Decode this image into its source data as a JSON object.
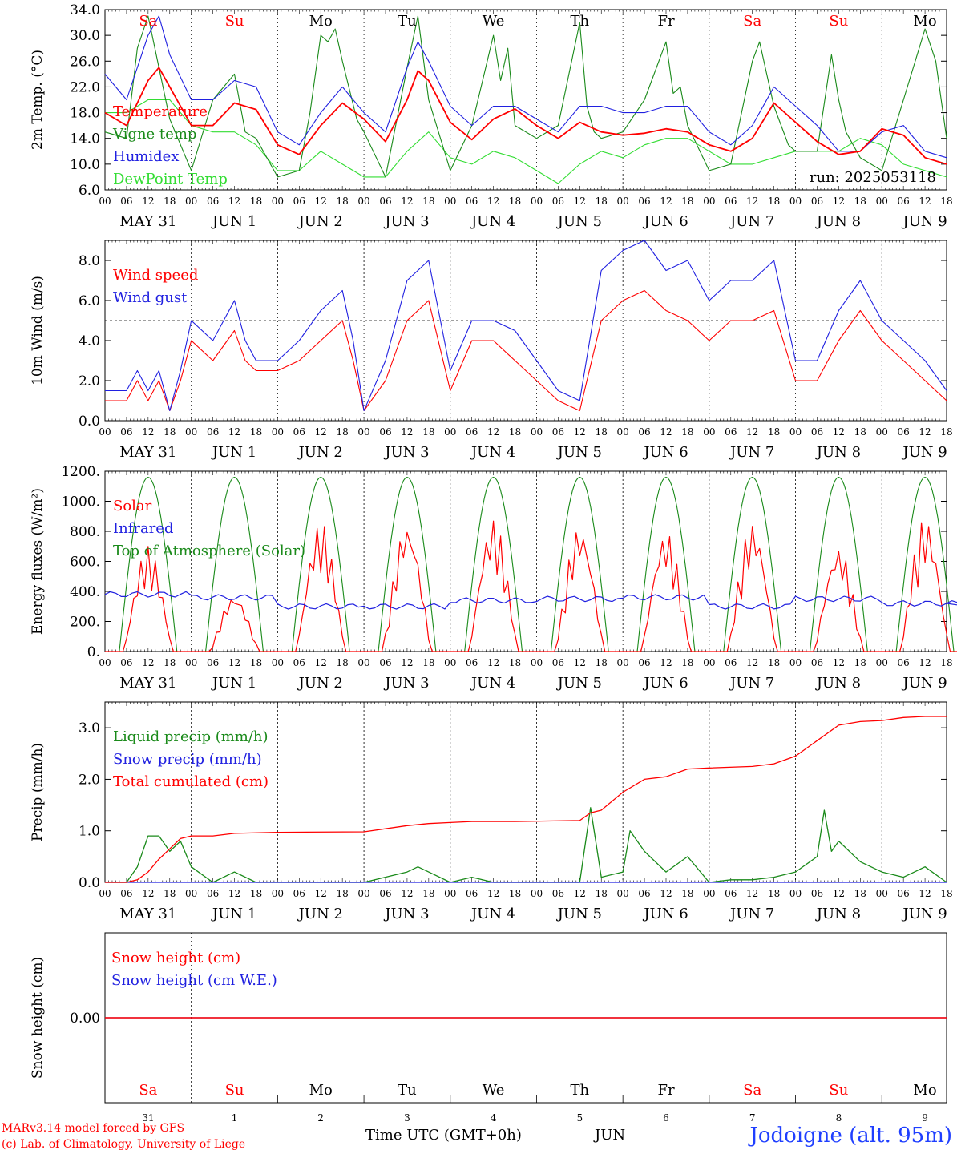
{
  "time_axis": {
    "hour_ticks": [
      "00",
      "06",
      "12",
      "18"
    ],
    "dates": [
      "MAY 31",
      "JUN  1",
      "JUN  2",
      "JUN  3",
      "JUN  4",
      "JUN  5",
      "JUN  6",
      "JUN  7",
      "JUN  8",
      "JUN  9"
    ],
    "weekdays": [
      "Sa",
      "Su",
      "Mo",
      "Tu",
      "We",
      "Th",
      "Fr",
      "Sa",
      "Su",
      "Mo"
    ],
    "weekend_color": "#ff0000",
    "weekday_color": "#000000",
    "bottom_day_numbers": [
      "31",
      "1",
      "2",
      "3",
      "4",
      "5",
      "6",
      "7",
      "8",
      "9"
    ],
    "bottom_month": "JUN",
    "axis_label": "Time UTC (GMT+0h)"
  },
  "footer": {
    "model_line": "MARv3.14 model forced by GFS",
    "copyright": "(c) Lab. of Climatology, University of Liege",
    "station": "Jodoigne (alt. 95m)"
  },
  "chart_data": [
    {
      "type": "line",
      "ylabel": "2m Temp. (°C)",
      "ylim": [
        6,
        34
      ],
      "yticks": [
        "6.0",
        "10.0",
        "14.0",
        "18.0",
        "22.0",
        "26.0",
        "30.0",
        "34.0"
      ],
      "run_label": "run: 2025053118",
      "x_unit": "hours since 2025-05-31 00 UTC",
      "series": [
        {
          "name": "Temperature",
          "color": "#ff0000",
          "x": [
            0,
            6,
            12,
            15,
            18,
            24,
            30,
            36,
            42,
            48,
            54,
            60,
            66,
            72,
            78,
            84,
            87,
            90,
            96,
            102,
            108,
            114,
            120,
            126,
            132,
            138,
            144,
            150,
            156,
            162,
            168,
            174,
            180,
            186,
            192,
            198,
            204,
            210,
            216,
            222,
            228,
            234
          ],
          "y": [
            18,
            16,
            23,
            25,
            22,
            16,
            16,
            19.5,
            18.5,
            13,
            11.5,
            16,
            19.5,
            17,
            13.5,
            20,
            24.5,
            23,
            16.5,
            13.8,
            17,
            18.6,
            16,
            14,
            16.5,
            15,
            14.5,
            14.8,
            15.5,
            15,
            13,
            12,
            14,
            19.5,
            16.5,
            13.5,
            11.5,
            12,
            15.5,
            14.5,
            11,
            10
          ]
        },
        {
          "name": "Vigne temp",
          "color": "#1a8a1a",
          "x": [
            0,
            6,
            9,
            12,
            15,
            18,
            24,
            30,
            36,
            39,
            42,
            48,
            54,
            57,
            60,
            62,
            64,
            66,
            70,
            72,
            78,
            84,
            87,
            90,
            96,
            102,
            108,
            110,
            112,
            114,
            120,
            126,
            132,
            134,
            136,
            138,
            144,
            150,
            156,
            158,
            160,
            162,
            168,
            174,
            180,
            182,
            184,
            186,
            190,
            192,
            198,
            202,
            204,
            206,
            210,
            216,
            222,
            228,
            231,
            234
          ],
          "y": [
            15,
            14,
            28,
            33,
            25,
            17,
            9,
            20,
            24,
            15,
            14,
            8,
            9,
            18,
            30,
            29,
            31,
            26,
            17,
            15,
            8,
            25,
            33,
            20,
            9,
            16,
            30,
            23,
            28,
            16,
            14,
            16,
            32,
            19,
            15,
            14,
            15,
            20,
            29,
            21,
            22,
            16,
            9,
            10,
            26,
            29,
            24,
            19,
            13,
            12,
            12,
            27,
            20,
            15,
            11,
            9,
            20,
            31,
            26,
            14
          ]
        },
        {
          "name": "Humidex",
          "color": "#2020e0",
          "x": [
            0,
            6,
            12,
            15,
            18,
            24,
            30,
            36,
            42,
            48,
            54,
            60,
            66,
            72,
            78,
            84,
            87,
            90,
            96,
            102,
            108,
            114,
            120,
            126,
            132,
            138,
            144,
            150,
            156,
            162,
            168,
            174,
            180,
            186,
            192,
            198,
            204,
            210,
            216,
            222,
            228,
            234
          ],
          "y": [
            24,
            20,
            30,
            33,
            27,
            20,
            20,
            23,
            22,
            15,
            13,
            18,
            22,
            18,
            15,
            25,
            29,
            26,
            19,
            16,
            19,
            19,
            17,
            15,
            19,
            19,
            18,
            18,
            19,
            19,
            15,
            13,
            16,
            22,
            19,
            16,
            12,
            12,
            15,
            16,
            12,
            11
          ]
        },
        {
          "name": "DewPoint Temp",
          "color": "#33dd33",
          "x": [
            0,
            6,
            12,
            18,
            24,
            30,
            36,
            42,
            48,
            54,
            60,
            66,
            72,
            78,
            84,
            90,
            96,
            102,
            108,
            114,
            120,
            126,
            132,
            138,
            144,
            150,
            156,
            162,
            168,
            174,
            180,
            186,
            192,
            198,
            204,
            210,
            216,
            222,
            228,
            234
          ],
          "y": [
            18,
            18,
            20,
            20,
            16,
            15,
            15,
            13,
            9,
            9,
            12,
            10,
            8,
            8,
            12,
            15,
            11,
            10,
            12,
            11,
            9,
            7,
            10,
            12,
            11,
            13,
            14,
            14,
            12,
            10,
            10,
            11,
            12,
            12,
            12,
            14,
            13,
            10,
            9,
            8
          ]
        }
      ]
    },
    {
      "type": "line",
      "ylabel": "10m Wind (m/s)",
      "ylim": [
        0,
        9
      ],
      "yticks": [
        "0.0",
        "2.0",
        "4.0",
        "6.0",
        "8.0"
      ],
      "reference_line": 5,
      "series": [
        {
          "name": "Wind speed",
          "color": "#ff0000",
          "x": [
            0,
            6,
            9,
            12,
            15,
            18,
            21,
            24,
            30,
            36,
            39,
            42,
            48,
            54,
            60,
            66,
            69,
            72,
            78,
            84,
            90,
            96,
            102,
            108,
            114,
            120,
            126,
            132,
            138,
            144,
            150,
            156,
            162,
            168,
            174,
            180,
            186,
            192,
            198,
            204,
            210,
            216,
            222,
            228,
            234
          ],
          "y": [
            1,
            1,
            2,
            1,
            2,
            0.5,
            2,
            4,
            3,
            4.5,
            3,
            2.5,
            2.5,
            3,
            4,
            5,
            3,
            0.5,
            2,
            5,
            6,
            1.5,
            4,
            4,
            3,
            2,
            1,
            0.5,
            5,
            6,
            6.5,
            5.5,
            5,
            4,
            5,
            5,
            5.5,
            2,
            2,
            4,
            5.5,
            4,
            3,
            2,
            1
          ]
        },
        {
          "name": "Wind gust",
          "color": "#2020e0",
          "x": [
            0,
            6,
            9,
            12,
            15,
            18,
            21,
            24,
            30,
            36,
            39,
            42,
            48,
            54,
            60,
            66,
            69,
            72,
            78,
            84,
            90,
            96,
            102,
            108,
            114,
            120,
            126,
            132,
            138,
            144,
            150,
            156,
            162,
            168,
            174,
            180,
            186,
            192,
            198,
            204,
            210,
            216,
            222,
            228,
            234
          ],
          "y": [
            1.5,
            1.5,
            2.5,
            1.5,
            2.5,
            0.5,
            2.5,
            5,
            4,
            6,
            4,
            3,
            3,
            4,
            5.5,
            6.5,
            4,
            0.5,
            3,
            7,
            8,
            2.5,
            5,
            5,
            4.5,
            3,
            1.5,
            1,
            7.5,
            8.5,
            9,
            7.5,
            8,
            6,
            7,
            7,
            8,
            3,
            3,
            5.5,
            7,
            5,
            4,
            3,
            1.5
          ]
        }
      ]
    },
    {
      "type": "line",
      "ylabel": "Energy fluxes (W/m²)",
      "ylim": [
        0,
        1200
      ],
      "yticks": [
        "0.",
        "200.",
        "400.",
        "600.",
        "800.",
        "1000.",
        "1200."
      ],
      "series": [
        {
          "name": "Solar",
          "color": "#ff0000",
          "daily_peak": [
            700,
            380,
            860,
            860,
            880,
            840,
            800,
            860,
            700,
            890
          ]
        },
        {
          "name": "Infrared",
          "color": "#2020e0",
          "daily_mean": [
            380,
            360,
            300,
            300,
            340,
            350,
            360,
            300,
            350,
            320
          ]
        },
        {
          "name": "Top of Atmosphere (Solar)",
          "color": "#1a8a1a",
          "daily_peak": [
            1160,
            1160,
            1160,
            1160,
            1160,
            1160,
            1160,
            1160,
            1160,
            1160
          ]
        }
      ]
    },
    {
      "type": "line",
      "ylabel": "Precip (mm/h)",
      "ylim": [
        0,
        3.5
      ],
      "yticks": [
        "0.0",
        "1.0",
        "2.0",
        "3.0"
      ],
      "series": [
        {
          "name": "Liquid precip (mm/h)",
          "color": "#1a8a1a",
          "x": [
            0,
            6,
            9,
            12,
            15,
            18,
            21,
            24,
            30,
            36,
            42,
            48,
            54,
            60,
            66,
            72,
            84,
            87,
            90,
            96,
            102,
            108,
            114,
            120,
            126,
            132,
            135,
            138,
            144,
            146,
            150,
            156,
            162,
            168,
            174,
            180,
            186,
            192,
            198,
            200,
            202,
            204,
            210,
            216,
            222,
            228,
            234
          ],
          "y": [
            0,
            0,
            0.3,
            0.9,
            0.9,
            0.6,
            0.8,
            0.3,
            0,
            0.2,
            0,
            0,
            0,
            0,
            0,
            0,
            0.2,
            0.3,
            0.2,
            0,
            0.1,
            0,
            0,
            0,
            0,
            0,
            1.45,
            0.1,
            0.2,
            1,
            0.6,
            0.2,
            0.5,
            0,
            0.05,
            0.05,
            0.1,
            0.2,
            0.5,
            1.4,
            0.6,
            0.8,
            0.4,
            0.2,
            0.1,
            0.3,
            0
          ]
        },
        {
          "name": "Snow precip (mm/h)",
          "color": "#2020e0",
          "x": [
            0,
            234
          ],
          "y": [
            0,
            0
          ]
        },
        {
          "name": "Total cumulated (cm)",
          "color": "#ff0000",
          "x": [
            0,
            6,
            9,
            12,
            15,
            18,
            21,
            24,
            30,
            36,
            48,
            72,
            84,
            90,
            96,
            102,
            114,
            132,
            135,
            138,
            144,
            150,
            156,
            162,
            168,
            180,
            186,
            192,
            198,
            204,
            210,
            216,
            222,
            228,
            234
          ],
          "y": [
            0,
            0,
            0.05,
            0.2,
            0.45,
            0.65,
            0.85,
            0.9,
            0.9,
            0.95,
            0.97,
            0.98,
            1.1,
            1.14,
            1.16,
            1.18,
            1.18,
            1.2,
            1.35,
            1.4,
            1.75,
            2,
            2.05,
            2.2,
            2.22,
            2.25,
            2.3,
            2.45,
            2.75,
            3.05,
            3.12,
            3.14,
            3.2,
            3.22,
            3.22
          ]
        }
      ]
    },
    {
      "type": "line",
      "ylabel": "Snow height (cm)",
      "yticks": [
        "0.00"
      ],
      "series": [
        {
          "name": "Snow height (cm)",
          "color": "#ff0000",
          "x": [
            0,
            234
          ],
          "y": [
            0,
            0
          ]
        },
        {
          "name": "Snow height (cm W.E.)",
          "color": "#2020e0",
          "x": [
            0,
            234
          ],
          "y": [
            0,
            0
          ]
        }
      ]
    }
  ]
}
